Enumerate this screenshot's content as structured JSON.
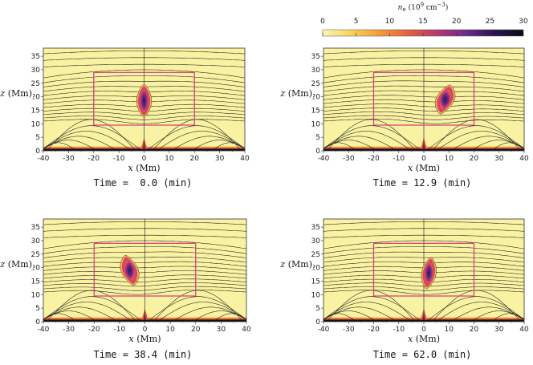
{
  "chart_data": {
    "type": "heatmap",
    "colorbar": {
      "title": "n_e (10^9 cm^-3)",
      "title_parts": {
        "symbol": "n",
        "sub": "e",
        "pre": "(10",
        "sup1": "9",
        "mid": " cm",
        "sup2": "−3",
        "post": ")"
      },
      "range": [
        0,
        30
      ],
      "ticks": [
        "0",
        "5",
        "10",
        "15",
        "20",
        "25",
        "30"
      ],
      "colors": [
        "#fbf7b4",
        "#f7d35a",
        "#f39a3c",
        "#e3603f",
        "#b43a6e",
        "#6b2b8c",
        "#2a1550",
        "#0c0c14"
      ]
    },
    "field_color": "#f8f2a2",
    "line_color": "#1a1a1a",
    "box_color": "#d9367c",
    "panels": [
      {
        "name": "panel-t0",
        "time_label": "Time =  0.0 (min)",
        "xlim": [
          -40,
          40
        ],
        "ylim": [
          0,
          38
        ],
        "x_ticks": [
          "-40",
          "-30",
          "-20",
          "-10",
          "0",
          "10",
          "20",
          "30",
          "40"
        ],
        "y_ticks": [
          "0",
          "5",
          "10",
          "15",
          "20",
          "25",
          "30",
          "35"
        ],
        "xlabel": "x (Mm)",
        "ylabel": "z (Mm)",
        "box": {
          "x": [
            -20,
            20
          ],
          "z": [
            9.5,
            29
          ]
        },
        "prominence": {
          "x": 0,
          "z": 18.5,
          "halfwidth": 2.2,
          "halfheight": 5.5,
          "tilt": 0
        }
      },
      {
        "name": "panel-t12",
        "time_label": "Time = 12.9 (min)",
        "xlim": [
          -40,
          40
        ],
        "ylim": [
          0,
          38
        ],
        "x_ticks": [
          "-40",
          "-30",
          "-20",
          "-10",
          "0",
          "10",
          "20",
          "30",
          "40"
        ],
        "y_ticks": [
          "0",
          "5",
          "10",
          "15",
          "20",
          "25",
          "30",
          "35"
        ],
        "xlabel": "x (Mm)",
        "ylabel": "z (Mm)",
        "box": {
          "x": [
            -20,
            20
          ],
          "z": [
            9.5,
            29
          ]
        },
        "prominence": {
          "x": 8.5,
          "z": 19,
          "halfwidth": 2.8,
          "halfheight": 4.8,
          "tilt": 0.35
        }
      },
      {
        "name": "panel-t38",
        "time_label": "Time = 38.4 (min)",
        "xlim": [
          -40,
          40
        ],
        "ylim": [
          0,
          38
        ],
        "x_ticks": [
          "-40",
          "-30",
          "-20",
          "-10",
          "0",
          "10",
          "20",
          "30",
          "40"
        ],
        "y_ticks": [
          "0",
          "5",
          "10",
          "15",
          "20",
          "25",
          "30",
          "35"
        ],
        "xlabel": "x (Mm)",
        "ylabel": "z (Mm)",
        "box": {
          "x": [
            -20,
            20
          ],
          "z": [
            9.5,
            29
          ]
        },
        "prominence": {
          "x": -6,
          "z": 19,
          "halfwidth": 2.6,
          "halfheight": 5.0,
          "tilt": -0.3
        }
      },
      {
        "name": "panel-t62",
        "time_label": "Time = 62.0 (min)",
        "xlim": [
          -40,
          40
        ],
        "ylim": [
          0,
          38
        ],
        "x_ticks": [
          "-40",
          "-30",
          "-20",
          "-10",
          "0",
          "10",
          "20",
          "30",
          "40"
        ],
        "y_ticks": [
          "0",
          "5",
          "10",
          "15",
          "20",
          "25",
          "30",
          "35"
        ],
        "xlabel": "x (Mm)",
        "ylabel": "z (Mm)",
        "box": {
          "x": [
            -20,
            20
          ],
          "z": [
            9.5,
            29
          ]
        },
        "prominence": {
          "x": 2,
          "z": 18,
          "halfwidth": 2.2,
          "halfheight": 5.2,
          "tilt": 0.15
        }
      }
    ]
  }
}
